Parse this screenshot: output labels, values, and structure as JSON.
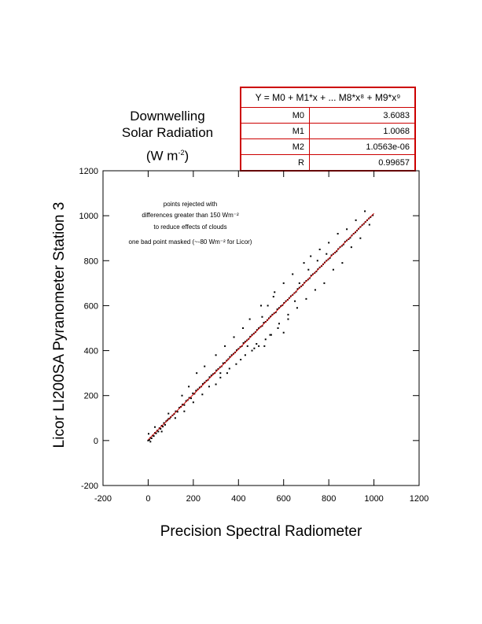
{
  "title": {
    "line1": "Downwelling",
    "line2": "Solar Radiation",
    "units_prefix": "(W m",
    "units_sup": "-2",
    "units_suffix": ")"
  },
  "fit": {
    "equation": "Y = M0 + M1*x + ... M8*x⁸ + M9*x⁹",
    "rows": [
      {
        "name": "M0",
        "value": "3.6083"
      },
      {
        "name": "M1",
        "value": "1.0068"
      },
      {
        "name": "M2",
        "value": "1.0563e-06"
      },
      {
        "name": "R",
        "value": "0.99657"
      }
    ],
    "color": "#cc0000"
  },
  "annotations": [
    "points rejected with",
    "differences greater than 150 Wm⁻²",
    "to reduce effects of clouds",
    "one bad point masked (~-80 Wm⁻² for Licor)"
  ],
  "chart_data": {
    "type": "scatter",
    "xlabel": "Precision Spectral Radiometer",
    "ylabel": "Licor LI200SA Pyranometer Station 3",
    "xlim": [
      -200,
      1200
    ],
    "ylim": [
      -200,
      1200
    ],
    "xticks": [
      "-200",
      "0",
      "200",
      "400",
      "600",
      "800",
      "1000",
      "1200"
    ],
    "yticks": [
      "-200",
      "0",
      "200",
      "400",
      "600",
      "800",
      "1000",
      "1200"
    ],
    "grid": false,
    "series": [
      {
        "points": [
          [
            0,
            0
          ],
          [
            5,
            3
          ],
          [
            10,
            12
          ],
          [
            15,
            10
          ],
          [
            20,
            22
          ],
          [
            25,
            20
          ],
          [
            30,
            34
          ],
          [
            35,
            32
          ],
          [
            40,
            44
          ],
          [
            45,
            40
          ],
          [
            50,
            55
          ],
          [
            55,
            52
          ],
          [
            60,
            66
          ],
          [
            65,
            62
          ],
          [
            70,
            78
          ],
          [
            75,
            70
          ],
          [
            80,
            86
          ],
          [
            85,
            90
          ],
          [
            90,
            96
          ],
          [
            95,
            98
          ],
          [
            100,
            104
          ],
          [
            108,
            112
          ],
          [
            115,
            118
          ],
          [
            122,
            130
          ],
          [
            130,
            128
          ],
          [
            138,
            146
          ],
          [
            145,
            150
          ],
          [
            152,
            160
          ],
          [
            160,
            158
          ],
          [
            168,
            176
          ],
          [
            175,
            180
          ],
          [
            182,
            190
          ],
          [
            190,
            188
          ],
          [
            198,
            210
          ],
          [
            205,
            208
          ],
          [
            212,
            222
          ],
          [
            220,
            228
          ],
          [
            228,
            236
          ],
          [
            235,
            240
          ],
          [
            242,
            252
          ],
          [
            250,
            258
          ],
          [
            258,
            266
          ],
          [
            265,
            270
          ],
          [
            272,
            282
          ],
          [
            280,
            290
          ],
          [
            288,
            296
          ],
          [
            295,
            300
          ],
          [
            302,
            312
          ],
          [
            310,
            318
          ],
          [
            318,
            326
          ],
          [
            325,
            330
          ],
          [
            332,
            344
          ],
          [
            340,
            346
          ],
          [
            348,
            356
          ],
          [
            355,
            362
          ],
          [
            362,
            372
          ],
          [
            370,
            380
          ],
          [
            378,
            386
          ],
          [
            385,
            392
          ],
          [
            392,
            402
          ],
          [
            400,
            408
          ],
          [
            408,
            416
          ],
          [
            415,
            420
          ],
          [
            422,
            434
          ],
          [
            430,
            440
          ],
          [
            438,
            446
          ],
          [
            445,
            452
          ],
          [
            452,
            462
          ],
          [
            460,
            470
          ],
          [
            468,
            476
          ],
          [
            475,
            482
          ],
          [
            482,
            492
          ],
          [
            490,
            500
          ],
          [
            498,
            506
          ],
          [
            505,
            510
          ],
          [
            512,
            524
          ],
          [
            520,
            528
          ],
          [
            528,
            536
          ],
          [
            535,
            544
          ],
          [
            542,
            552
          ],
          [
            550,
            560
          ],
          [
            558,
            566
          ],
          [
            565,
            570
          ],
          [
            572,
            584
          ],
          [
            580,
            590
          ],
          [
            588,
            598
          ],
          [
            595,
            602
          ],
          [
            602,
            612
          ],
          [
            610,
            620
          ],
          [
            618,
            626
          ],
          [
            625,
            634
          ],
          [
            632,
            642
          ],
          [
            640,
            648
          ],
          [
            648,
            656
          ],
          [
            655,
            662
          ],
          [
            662,
            674
          ],
          [
            670,
            680
          ],
          [
            678,
            686
          ],
          [
            685,
            692
          ],
          [
            692,
            702
          ],
          [
            700,
            710
          ],
          [
            708,
            716
          ],
          [
            715,
            722
          ],
          [
            722,
            734
          ],
          [
            730,
            740
          ],
          [
            738,
            746
          ],
          [
            745,
            752
          ],
          [
            752,
            762
          ],
          [
            760,
            770
          ],
          [
            768,
            776
          ],
          [
            775,
            784
          ],
          [
            782,
            792
          ],
          [
            790,
            800
          ],
          [
            798,
            806
          ],
          [
            805,
            812
          ],
          [
            812,
            824
          ],
          [
            820,
            830
          ],
          [
            828,
            836
          ],
          [
            835,
            842
          ],
          [
            842,
            852
          ],
          [
            850,
            860
          ],
          [
            858,
            866
          ],
          [
            865,
            872
          ],
          [
            872,
            884
          ],
          [
            880,
            890
          ],
          [
            888,
            896
          ],
          [
            895,
            902
          ],
          [
            902,
            912
          ],
          [
            910,
            920
          ],
          [
            918,
            926
          ],
          [
            925,
            934
          ],
          [
            932,
            942
          ],
          [
            940,
            950
          ],
          [
            948,
            958
          ],
          [
            955,
            964
          ],
          [
            962,
            972
          ],
          [
            970,
            980
          ],
          [
            978,
            988
          ],
          [
            985,
            994
          ],
          [
            995,
            1002
          ],
          [
            2,
            30
          ],
          [
            10,
            -5
          ],
          [
            30,
            60
          ],
          [
            60,
            40
          ],
          [
            90,
            120
          ],
          [
            120,
            100
          ],
          [
            150,
            200
          ],
          [
            160,
            130
          ],
          [
            180,
            240
          ],
          [
            200,
            170
          ],
          [
            215,
            300
          ],
          [
            240,
            205
          ],
          [
            250,
            330
          ],
          [
            270,
            240
          ],
          [
            300,
            380
          ],
          [
            320,
            280
          ],
          [
            340,
            420
          ],
          [
            350,
            300
          ],
          [
            380,
            460
          ],
          [
            390,
            340
          ],
          [
            420,
            500
          ],
          [
            430,
            380
          ],
          [
            450,
            540
          ],
          [
            470,
            410
          ],
          [
            490,
            420
          ],
          [
            500,
            600
          ],
          [
            520,
            450
          ],
          [
            540,
            470
          ],
          [
            560,
            660
          ],
          [
            575,
            500
          ],
          [
            600,
            700
          ],
          [
            620,
            560
          ],
          [
            640,
            740
          ],
          [
            660,
            590
          ],
          [
            690,
            790
          ],
          [
            700,
            630
          ],
          [
            720,
            820
          ],
          [
            740,
            670
          ],
          [
            760,
            850
          ],
          [
            780,
            700
          ],
          [
            800,
            880
          ],
          [
            820,
            760
          ],
          [
            840,
            920
          ],
          [
            860,
            790
          ],
          [
            880,
            940
          ],
          [
            900,
            860
          ],
          [
            920,
            980
          ],
          [
            940,
            900
          ],
          [
            960,
            1020
          ],
          [
            980,
            960
          ],
          [
            515,
            420
          ],
          [
            545,
            470
          ],
          [
            580,
            520
          ],
          [
            600,
            480
          ],
          [
            620,
            540
          ],
          [
            650,
            620
          ],
          [
            670,
            700
          ],
          [
            710,
            760
          ],
          [
            750,
            800
          ],
          [
            790,
            830
          ],
          [
            300,
            250
          ],
          [
            320,
            300
          ],
          [
            360,
            320
          ],
          [
            410,
            360
          ],
          [
            440,
            420
          ],
          [
            460,
            400
          ],
          [
            480,
            430
          ],
          [
            505,
            550
          ],
          [
            530,
            600
          ],
          [
            555,
            640
          ]
        ]
      },
      {
        "fit_line": [
          [
            0,
            3.6
          ],
          [
            1000,
            1010.4
          ]
        ]
      }
    ]
  }
}
